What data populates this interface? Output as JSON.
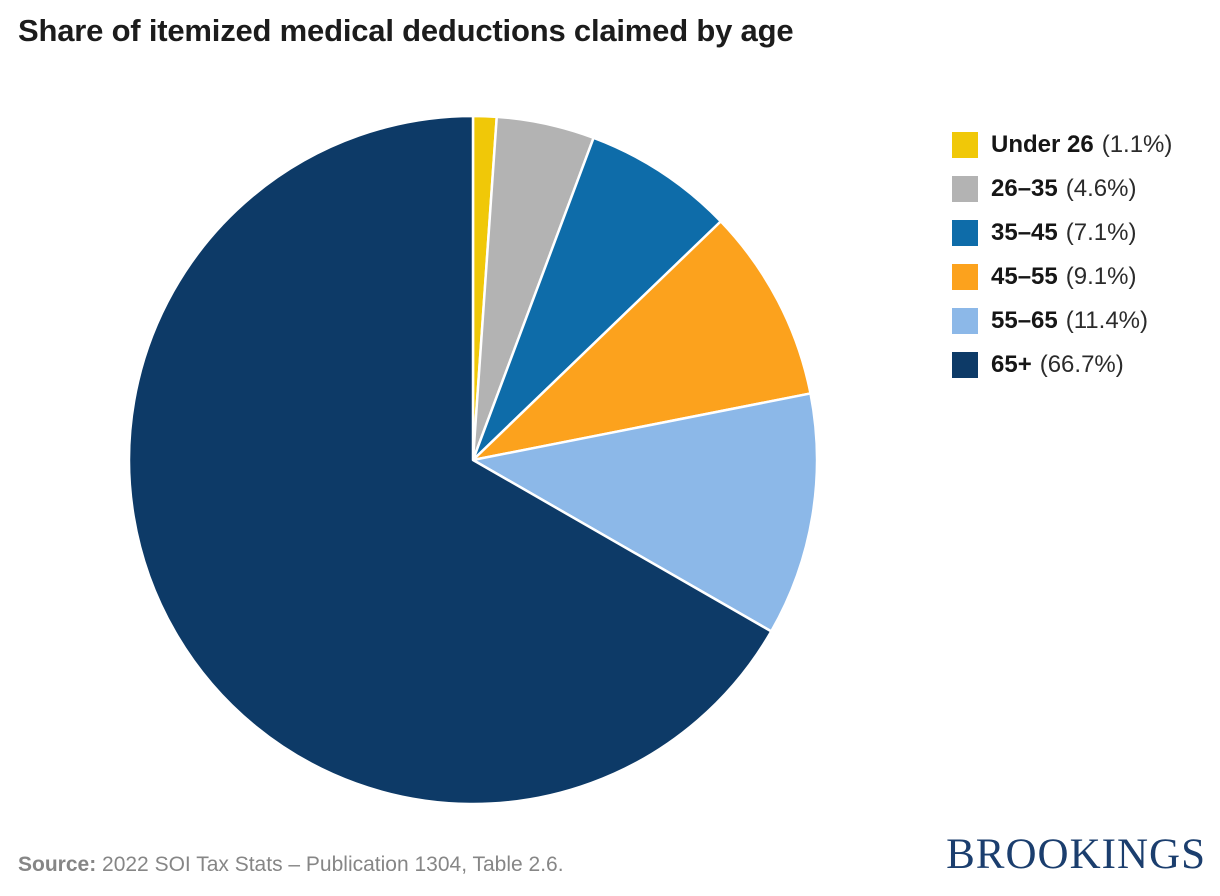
{
  "chart_data": {
    "type": "pie",
    "title": "Share of itemized medical deductions claimed by age",
    "legend_position": "right",
    "start_angle_deg": 0,
    "direction": "clockwise",
    "stroke_color": "#ffffff",
    "slices": [
      {
        "label": "Under 26",
        "value": 1.1,
        "display": "(1.1%)",
        "color": "#F0C808"
      },
      {
        "label": "26–35",
        "value": 4.6,
        "display": "(4.6%)",
        "color": "#B3B3B3"
      },
      {
        "label": "35–45",
        "value": 7.1,
        "display": "(7.1%)",
        "color": "#0E6CA9"
      },
      {
        "label": "45–55",
        "value": 9.1,
        "display": "(9.1%)",
        "color": "#FCA21D"
      },
      {
        "label": "55–65",
        "value": 11.4,
        "display": "(11.4%)",
        "color": "#8CB8E8"
      },
      {
        "label": "65+",
        "value": 66.7,
        "display": "(66.7%)",
        "color": "#0D3A67"
      }
    ]
  },
  "source": {
    "label": "Source:",
    "text": " 2022 SOI Tax Stats – Publication 1304, Table 2.6."
  },
  "brand": {
    "wordmark": "BROOKINGS",
    "color": "#1b3e6e"
  }
}
